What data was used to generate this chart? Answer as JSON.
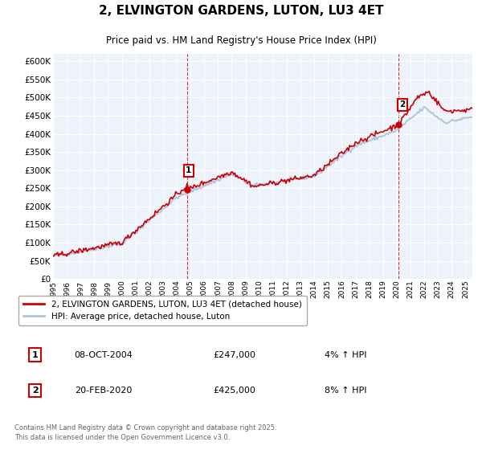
{
  "title": "2, ELVINGTON GARDENS, LUTON, LU3 4ET",
  "subtitle": "Price paid vs. HM Land Registry's House Price Index (HPI)",
  "legend_line1": "2, ELVINGTON GARDENS, LUTON, LU3 4ET (detached house)",
  "legend_line2": "HPI: Average price, detached house, Luton",
  "annotation1_label": "1",
  "annotation1_date": "08-OCT-2004",
  "annotation1_price": "£247,000",
  "annotation1_hpi": "4% ↑ HPI",
  "annotation1_year": 2004.77,
  "annotation1_value": 247000,
  "annotation2_label": "2",
  "annotation2_date": "20-FEB-2020",
  "annotation2_price": "£425,000",
  "annotation2_hpi": "8% ↑ HPI",
  "annotation2_year": 2020.13,
  "annotation2_value": 425000,
  "footer_line1": "Contains HM Land Registry data © Crown copyright and database right 2025.",
  "footer_line2": "This data is licensed under the Open Government Licence v3.0.",
  "ylim": [
    0,
    620000
  ],
  "ytick_step": 50000,
  "red_color": "#cc0000",
  "blue_color": "#aac4e0",
  "background_color": "#eef2fb"
}
